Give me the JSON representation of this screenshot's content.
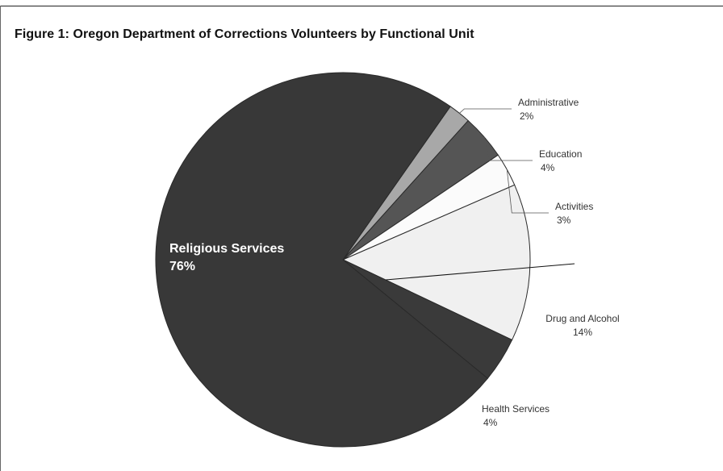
{
  "chart_data": {
    "type": "pie",
    "title": "Figure 1: Oregon Department of Corrections Volunteers by Functional Unit",
    "slices": [
      {
        "label": "Administrative",
        "value": 2,
        "value_label": "2%",
        "color": "#a8a8a8"
      },
      {
        "label": "Education",
        "value": 4,
        "value_label": "4%",
        "color": "#555555"
      },
      {
        "label": "Activities",
        "value": 3,
        "value_label": "3%",
        "color": "#fbfbfb"
      },
      {
        "label": "Drug and Alcohol",
        "value": 14,
        "value_label": "14%",
        "color": "#f0f0f0"
      },
      {
        "label": "Health Services",
        "value": 4,
        "value_label": "4%",
        "color": "#3a3a3a"
      },
      {
        "label": "Religious Services",
        "value": 76,
        "value_label": "76%",
        "color": "#383838"
      }
    ]
  }
}
